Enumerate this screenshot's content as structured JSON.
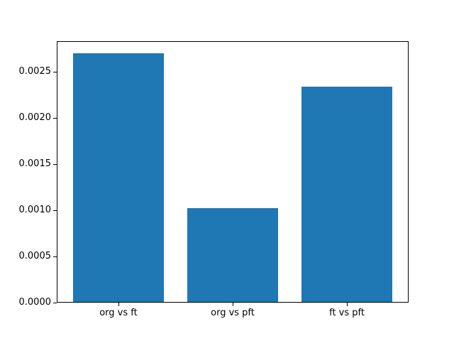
{
  "chart_data": {
    "type": "bar",
    "title": "",
    "xlabel": "",
    "ylabel": "",
    "categories": [
      "org vs ft",
      "org vs pft",
      "ft vs pft"
    ],
    "values": [
      0.0027,
      0.00102,
      0.00234
    ],
    "ylim": [
      0,
      0.00283
    ],
    "yticks": [
      {
        "value": 0.0,
        "label": "0.0000"
      },
      {
        "value": 0.0005,
        "label": "0.0005"
      },
      {
        "value": 0.001,
        "label": "0.0010"
      },
      {
        "value": 0.0015,
        "label": "0.0015"
      },
      {
        "value": 0.002,
        "label": "0.0020"
      },
      {
        "value": 0.0025,
        "label": "0.0025"
      }
    ],
    "bar_color": "#1f77b4",
    "background_color": "#ffffff",
    "grid": false,
    "legend": null
  }
}
